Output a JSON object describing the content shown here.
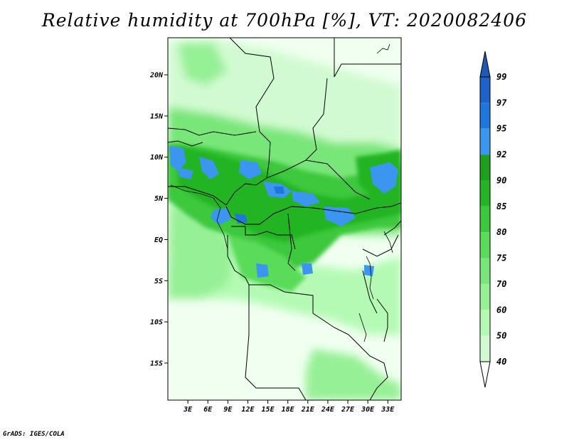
{
  "title": "Relative humidity at 700hPa [%], VT: 2020082406",
  "credit": "GrADS: IGES/COLA",
  "map": {
    "lat_range": [
      -19.5,
      24.5
    ],
    "lon_range": [
      0,
      35
    ],
    "lat_ticks": [
      {
        "lat": 20,
        "label": "20N"
      },
      {
        "lat": 15,
        "label": "15N"
      },
      {
        "lat": 10,
        "label": "10N"
      },
      {
        "lat": 5,
        "label": "5N"
      },
      {
        "lat": 0,
        "label": "EQ"
      },
      {
        "lat": -5,
        "label": "5S"
      },
      {
        "lat": -10,
        "label": "10S"
      },
      {
        "lat": -15,
        "label": "15S"
      }
    ],
    "lon_ticks": [
      {
        "lon": 3,
        "label": "3E"
      },
      {
        "lon": 6,
        "label": "6E"
      },
      {
        "lon": 9,
        "label": "9E"
      },
      {
        "lon": 12,
        "label": "12E"
      },
      {
        "lon": 15,
        "label": "15E"
      },
      {
        "lon": 18,
        "label": "18E"
      },
      {
        "lon": 21,
        "label": "21E"
      },
      {
        "lon": 24,
        "label": "24E"
      },
      {
        "lon": 27,
        "label": "27E"
      },
      {
        "lon": 30,
        "label": "30E"
      },
      {
        "lon": 33,
        "label": "33E"
      }
    ]
  },
  "colorbar": {
    "levels": [
      {
        "label": "99",
        "color": "#1e64c8"
      },
      {
        "label": "97",
        "color": "#1e78dc"
      },
      {
        "label": "95",
        "color": "#3c96f0"
      },
      {
        "label": "92",
        "color": "#1ea01e"
      },
      {
        "label": "90",
        "color": "#24b424"
      },
      {
        "label": "85",
        "color": "#3cc83c"
      },
      {
        "label": "80",
        "color": "#5adc5a"
      },
      {
        "label": "75",
        "color": "#78e678"
      },
      {
        "label": "70",
        "color": "#96f096"
      },
      {
        "label": "60",
        "color": "#b4fab4"
      },
      {
        "label": "50",
        "color": "#d2fad2"
      },
      {
        "label": "40",
        "color": "#e6ffe6"
      }
    ],
    "top_color": "#1e5ab4",
    "bottom_color": "#ffffff"
  },
  "colors": {
    "background_low": "#f5fff5",
    "border": "#000000"
  }
}
